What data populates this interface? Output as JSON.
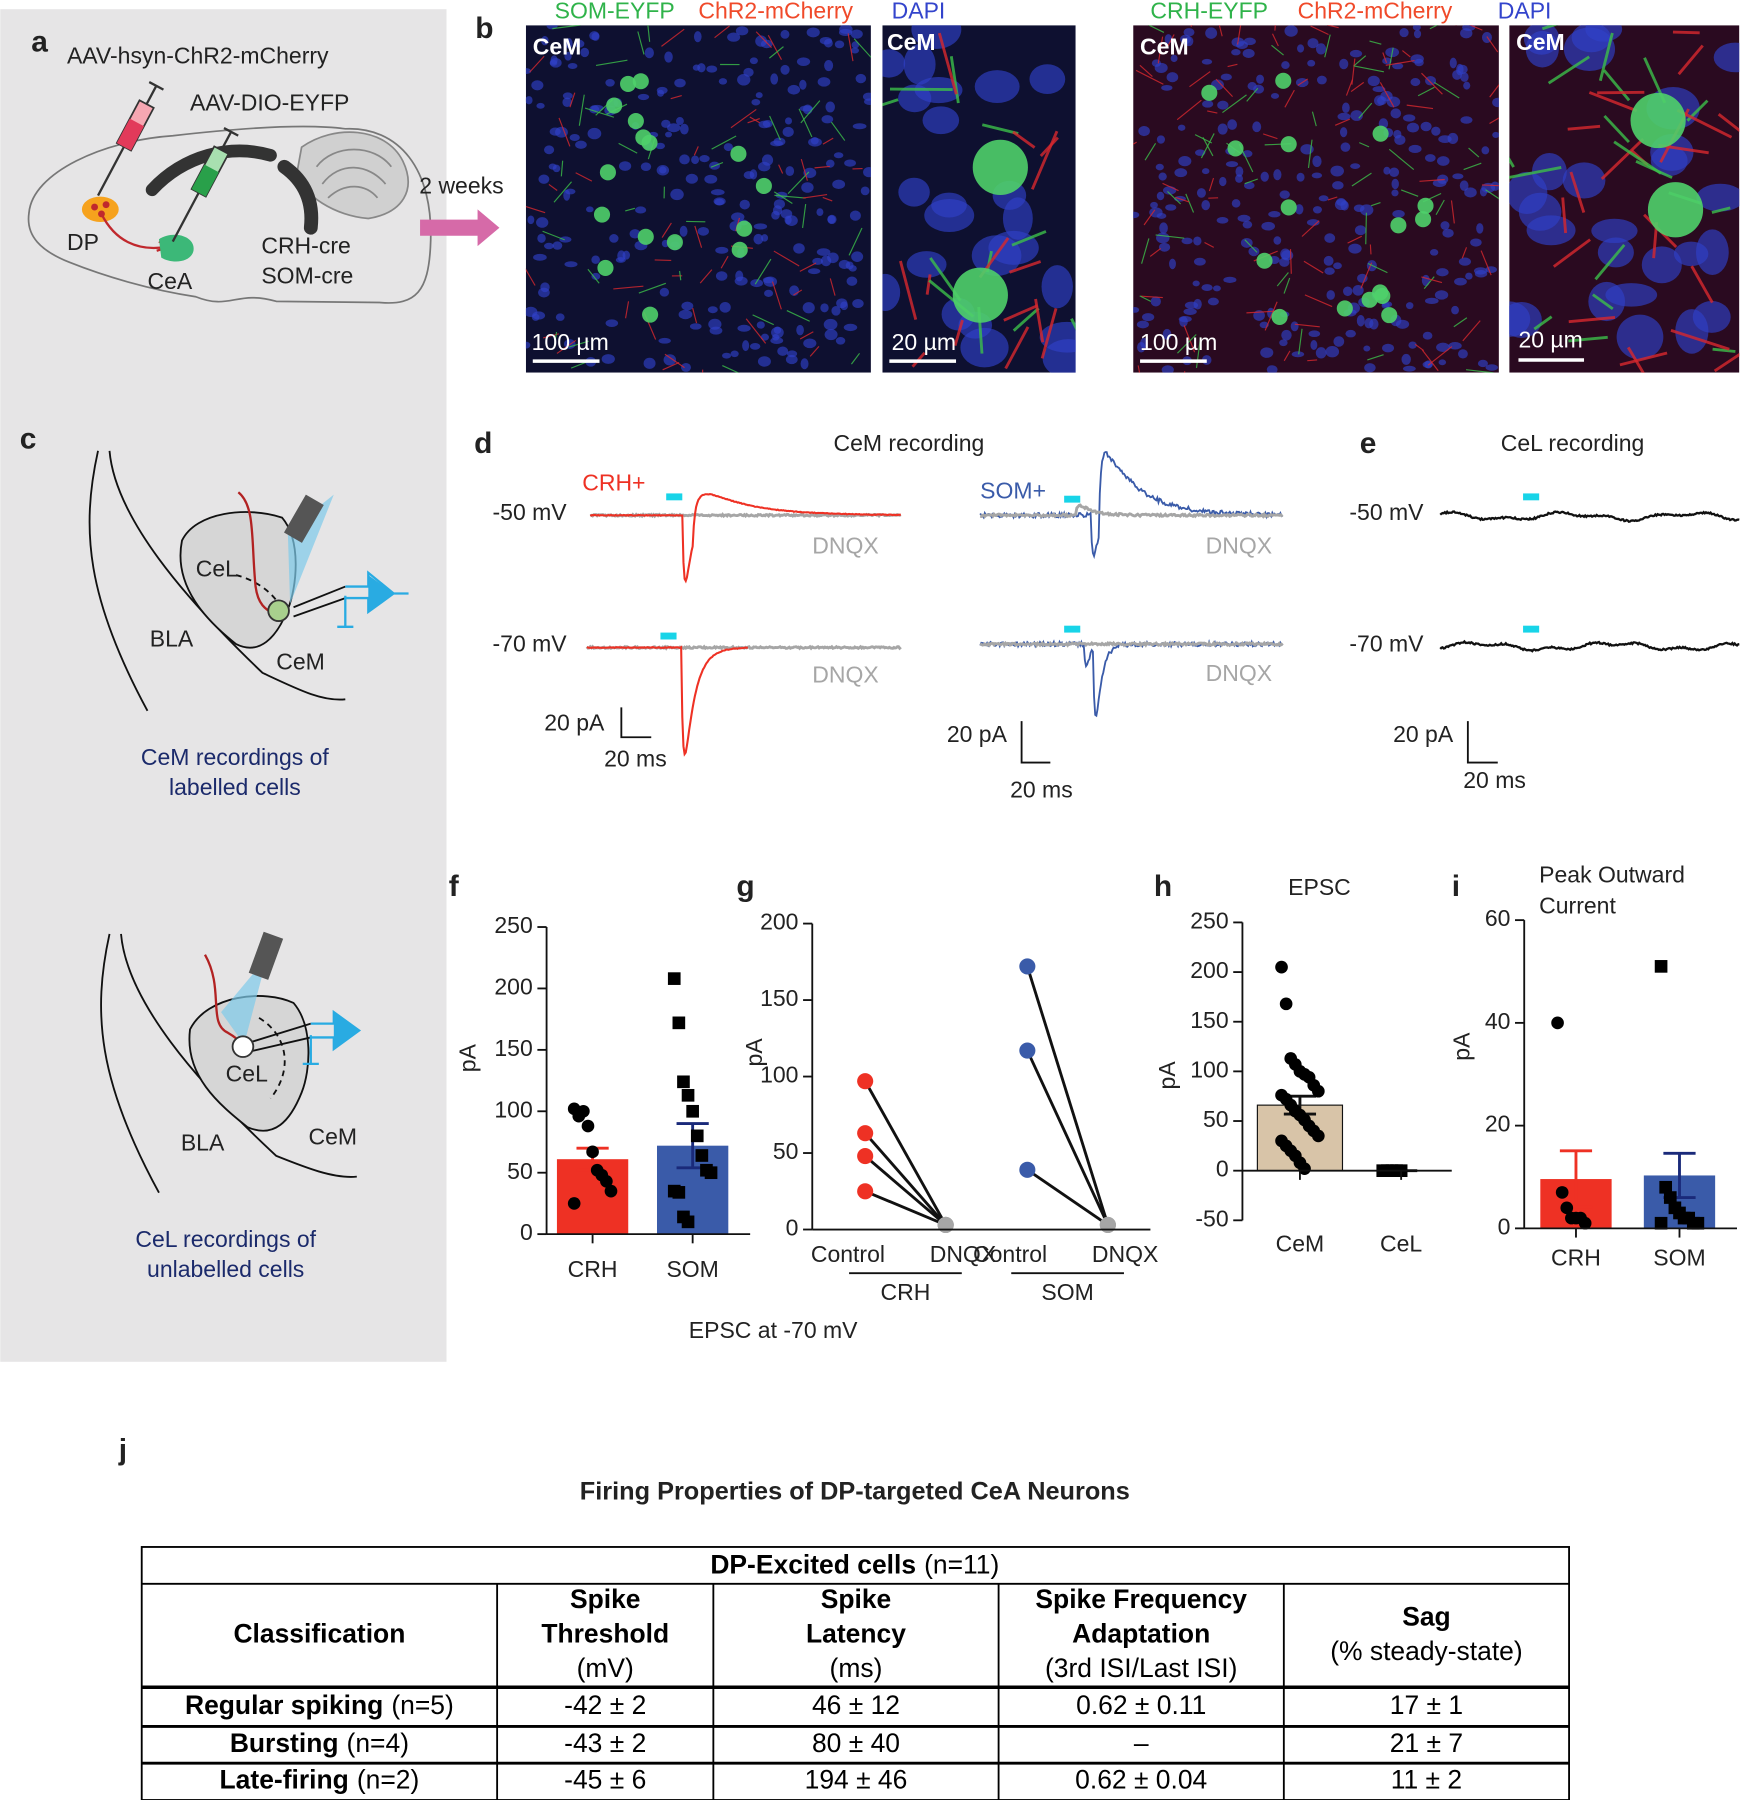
{
  "panel_a": {
    "label": "a",
    "virus1": "AAV-hsyn-ChR2-mCherry",
    "virus2": "AAV-DIO-EYFP",
    "dp": "DP",
    "cea": "CeA",
    "crh_cre": "CRH-cre",
    "som_cre": "SOM-cre",
    "arrow": "2 weeks"
  },
  "panel_b": {
    "label": "b",
    "left_legend": [
      "SOM-EYFP",
      "ChR2-mCherry",
      "DAPI"
    ],
    "right_legend": [
      "CRH-EYFP",
      "ChR2-mCherry",
      "DAPI"
    ],
    "region": "CeM",
    "scale_large": "100 µm",
    "scale_small": "20 µm"
  },
  "panel_c": {
    "label": "c",
    "cel": "CeL",
    "cem": "CeM",
    "bla": "BLA",
    "caption1": [
      "CeM recordings of",
      "labelled cells"
    ],
    "caption2": [
      "CeL recordings of",
      "unlabelled cells"
    ]
  },
  "panel_d": {
    "label": "d",
    "title": "CeM recording",
    "crh": "CRH+",
    "som": "SOM+",
    "v50": "-50 mV",
    "v70": "-70 mV",
    "dnqx": "DNQX",
    "scale_pa": "20 pA",
    "scale_ms": "20 ms"
  },
  "panel_e": {
    "label": "e",
    "title": "CeL recording"
  },
  "chart_data": [
    {
      "type": "bar",
      "label": "f",
      "ylabel": "pA",
      "xlabel": "EPSC at -70 mV",
      "categories": [
        "CRH",
        "SOM"
      ],
      "values": [
        61,
        72
      ],
      "errors": [
        9,
        18
      ],
      "colors": [
        "#ee3124",
        "#3a5ba9"
      ],
      "points": [
        [
          102,
          96,
          100,
          88,
          67,
          52,
          48,
          43,
          35,
          25
        ],
        [
          208,
          172,
          124,
          113,
          100,
          80,
          64,
          52,
          50,
          35,
          34,
          14,
          10
        ]
      ],
      "markers": [
        "circle",
        "square"
      ],
      "ylim": [
        0,
        250
      ],
      "yticks": [
        0,
        50,
        100,
        150,
        200,
        250
      ]
    },
    {
      "type": "paired",
      "label": "g",
      "ylabel": "pA",
      "categories": [
        "Control",
        "DNQX"
      ],
      "series": [
        {
          "name": "CRH",
          "color": "#ee3124",
          "control": [
            97,
            63,
            48,
            25
          ],
          "dnqx": [
            3,
            3,
            3,
            3
          ]
        },
        {
          "name": "SOM",
          "color": "#3a5ba9",
          "control": [
            172,
            117,
            39
          ],
          "dnqx": [
            3,
            3,
            3
          ]
        }
      ],
      "dnqx_color": "#a6a6a6",
      "ylim": [
        0,
        200
      ],
      "yticks": [
        0,
        50,
        100,
        150,
        200
      ]
    },
    {
      "type": "bar",
      "label": "h",
      "title": "EPSC",
      "ylabel": "pA",
      "categories": [
        "CeM",
        "CeL"
      ],
      "values": [
        66,
        0
      ],
      "errors": [
        9,
        0
      ],
      "colors": [
        "#d8c4a8",
        "#d8c4a8"
      ],
      "points": [
        [
          205,
          168,
          113,
          107,
          100,
          97,
          94,
          86,
          80,
          76,
          72,
          66,
          60,
          56,
          51,
          45,
          40,
          35,
          30,
          25,
          20,
          15,
          8,
          2
        ],
        [
          0,
          0,
          0,
          0,
          0
        ]
      ],
      "markers": [
        "circle",
        "square"
      ],
      "ylim": [
        -50,
        250
      ],
      "yticks": [
        -50,
        0,
        50,
        100,
        150,
        200,
        250
      ]
    },
    {
      "type": "bar",
      "label": "i",
      "title_lines": [
        "Peak Outward",
        "Current"
      ],
      "ylabel": "pA",
      "categories": [
        "CRH",
        "SOM"
      ],
      "values": [
        9.6,
        10.3
      ],
      "errors": [
        5.5,
        4.3
      ],
      "colors": [
        "#ee3124",
        "#3a5ba9"
      ],
      "points": [
        [
          40,
          7,
          4,
          2,
          2,
          2,
          1
        ],
        [
          51,
          8,
          6,
          4,
          3,
          2,
          2,
          1,
          1,
          1
        ]
      ],
      "markers": [
        "circle",
        "square"
      ],
      "ylim": [
        0,
        60
      ],
      "yticks": [
        0,
        20,
        40,
        60
      ]
    }
  ],
  "table": {
    "label": "j",
    "title": "Firing Properties of DP-targeted CeA Neurons",
    "group": {
      "bold": "DP-Excited cells",
      "normal": "(n=11)"
    },
    "columns": [
      {
        "bold": [
          "Classification"
        ],
        "normal": []
      },
      {
        "bold": [
          "Spike",
          "Threshold"
        ],
        "normal": [
          "(mV)"
        ]
      },
      {
        "bold": [
          "Spike",
          "Latency"
        ],
        "normal": [
          "(ms)"
        ]
      },
      {
        "bold": [
          "Spike Frequency",
          "Adaptation"
        ],
        "normal": [
          "(3rd ISI/Last ISI)"
        ]
      },
      {
        "bold": [
          "Sag"
        ],
        "normal": [
          "(% steady-state)"
        ]
      }
    ],
    "rows": [
      {
        "name": "Regular spiking",
        "n": "(n=5)",
        "values": [
          "-42 ± 2",
          "46 ± 12",
          "0.62 ± 0.11",
          "17 ± 1"
        ]
      },
      {
        "name": "Bursting",
        "n": "(n=4)",
        "values": [
          "-43 ± 2",
          "80 ± 40",
          "–",
          "21 ± 7"
        ]
      },
      {
        "name": "Late-firing",
        "n": "(n=2)",
        "values": [
          "-45 ± 6",
          "194 ± 46",
          "0.62 ± 0.04",
          "11 ± 2"
        ]
      }
    ]
  }
}
